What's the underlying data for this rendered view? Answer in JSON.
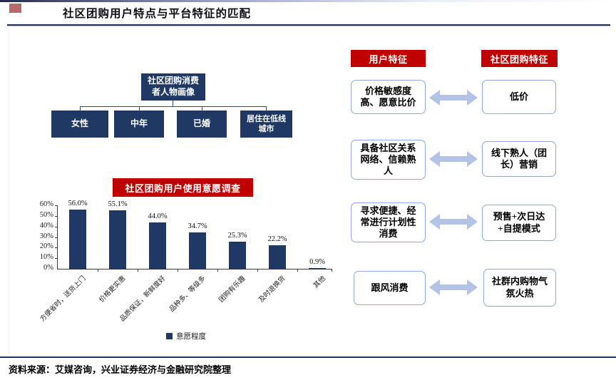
{
  "page": {
    "title": "社区团购用户特点与平台特征的匹配",
    "source": "资料来源：艾媒咨询，兴业证券经济与金融研究院整理"
  },
  "org_chart": {
    "root": "社区团购消费者人物画像",
    "children": [
      "女性",
      "中年",
      "已婚",
      "居住在低线城市"
    ]
  },
  "chart_data": {
    "type": "bar",
    "title": "社区团购用户使用意愿调查",
    "categories": [
      "方便省时，送货上门",
      "价格更实惠",
      "品质保证，新鲜度好",
      "品种多、等级多",
      "团购有乐趣",
      "及时退换货",
      "其他"
    ],
    "values": [
      56.0,
      55.1,
      44.0,
      34.7,
      25.3,
      22.2,
      0.9
    ],
    "value_labels": [
      "56.0%",
      "55.1%",
      "44.0%",
      "34.7%",
      "25.3%",
      "22.2%",
      "0.9%"
    ],
    "ylim": [
      0,
      60
    ],
    "ytick_step": 10,
    "ytick_labels": [
      "0%",
      "10%",
      "20%",
      "30%",
      "40%",
      "50%",
      "60%"
    ],
    "legend": [
      "意愿程度"
    ],
    "legend_position": "bottom",
    "grid": false
  },
  "matching_panel": {
    "left_header": "用户特征",
    "right_header": "社区团购特征",
    "rows": [
      {
        "user": "价格敏感度高、愿意比价",
        "platform": "低价"
      },
      {
        "user": "具备社区关系网络、信赖熟人",
        "platform": "线下熟人（团长）营销"
      },
      {
        "user": "寻求便捷、经常进行计划性消费",
        "platform": "预售+次日达+自提模式"
      },
      {
        "user": "跟风消费",
        "platform": "社群内购物气氛火热"
      }
    ]
  },
  "colors": {
    "navy": "#1F3864",
    "red": "#C00000",
    "arrow": "#B4C2E6",
    "box_border": "#8FAADC",
    "rule": "#24355C"
  }
}
